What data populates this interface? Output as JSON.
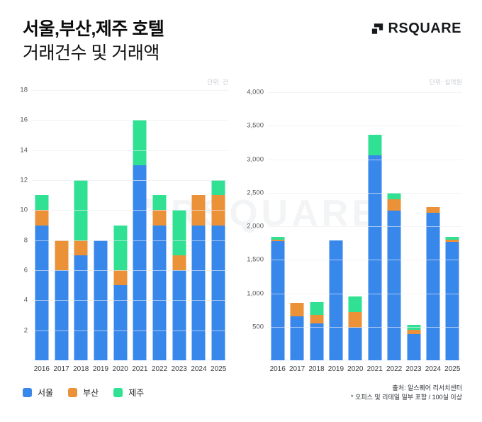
{
  "header": {
    "title_line1": "서울,부산,제주 호텔",
    "title_line2": "거래건수 및 거래액",
    "brand": "RSQUARE"
  },
  "watermark": {
    "text": "RSQUARE"
  },
  "legend": {
    "position": "bottom-left",
    "items": [
      {
        "key": "seoul",
        "label": "서울",
        "color": "#3887EB"
      },
      {
        "key": "busan",
        "label": "부산",
        "color": "#EB9138"
      },
      {
        "key": "jeju",
        "label": "제주",
        "color": "#31E193"
      }
    ]
  },
  "footer": {
    "source": "출처: 알스퀘어 리서치센터",
    "note": "* 오피스 및 리테일 일부 포함 / 100실 이상"
  },
  "chart_data": [
    {
      "type": "bar",
      "stacked": true,
      "name": "거래건수",
      "unit_label": "단위: 건",
      "categories": [
        "2016",
        "2017",
        "2018",
        "2019",
        "2020",
        "2021",
        "2022",
        "2023",
        "2024",
        "2025"
      ],
      "series": [
        {
          "name": "서울",
          "key": "seoul",
          "color": "#3887EB",
          "values": [
            9,
            6,
            7,
            8,
            5,
            13,
            9,
            6,
            9,
            9
          ]
        },
        {
          "name": "부산",
          "key": "busan",
          "color": "#EB9138",
          "values": [
            1,
            2,
            1,
            0,
            1,
            0,
            1,
            1,
            2,
            2
          ]
        },
        {
          "name": "제주",
          "key": "jeju",
          "color": "#31E193",
          "values": [
            1,
            0,
            4,
            0,
            3,
            3,
            1,
            3,
            0,
            1
          ]
        }
      ],
      "totals": [
        11,
        8,
        12,
        8,
        9,
        16,
        11,
        10,
        11,
        12
      ],
      "ylim": [
        0,
        18
      ],
      "yticks": [
        "2",
        "4",
        "6",
        "8",
        "10",
        "12",
        "14",
        "16",
        "18"
      ],
      "grid": true
    },
    {
      "type": "bar",
      "stacked": true,
      "name": "거래액",
      "unit_label": "단위: 십억원",
      "categories": [
        "2016",
        "2017",
        "2018",
        "2019",
        "2020",
        "2021",
        "2022",
        "2023",
        "2024",
        "2025"
      ],
      "series": [
        {
          "name": "서울",
          "key": "seoul",
          "color": "#3887EB",
          "values": [
            1775,
            660,
            550,
            1790,
            490,
            3060,
            2230,
            390,
            2200,
            1770
          ]
        },
        {
          "name": "부산",
          "key": "busan",
          "color": "#EB9138",
          "values": [
            25,
            200,
            125,
            0,
            225,
            0,
            175,
            70,
            85,
            25
          ]
        },
        {
          "name": "제주",
          "key": "jeju",
          "color": "#31E193",
          "values": [
            45,
            0,
            190,
            0,
            240,
            310,
            95,
            70,
            0,
            50
          ]
        }
      ],
      "totals": [
        1845,
        860,
        865,
        1790,
        955,
        3370,
        2500,
        530,
        2285,
        1845
      ],
      "ylim": [
        0,
        4000
      ],
      "yticks": [
        "500",
        "1,000",
        "1,500",
        "2,000",
        "2,500",
        "3,000",
        "3,500",
        "4,000"
      ],
      "grid": true
    }
  ]
}
